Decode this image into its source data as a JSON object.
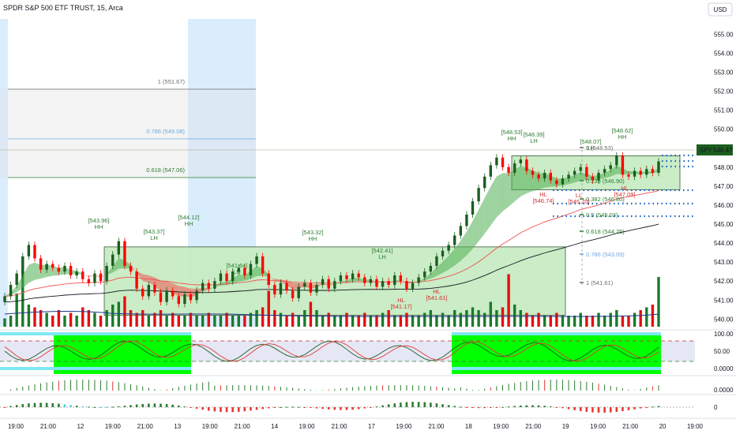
{
  "header": {
    "title": "SPDR S&P 500 ETF TRUST, 15, Arca",
    "currency": "USD"
  },
  "price_axis": {
    "ticks": [
      "555.00",
      "554.00",
      "553.00",
      "552.00",
      "551.00",
      "550.00",
      "549.00",
      "548.00",
      "547.00",
      "546.00",
      "545.00",
      "544.00",
      "543.00",
      "542.00",
      "541.00",
      "540.00"
    ],
    "last_label": "SPY",
    "last_price": "548.47"
  },
  "time_axis": {
    "labels": [
      "19:00",
      "21:00",
      "12",
      "19:00",
      "21:00",
      "13",
      "19:00",
      "21:00",
      "14",
      "19:00",
      "21:00",
      "17",
      "19:00",
      "21:00",
      "18",
      "19:00",
      "21:00",
      "19",
      "19:00",
      "21:00",
      "20",
      "19:00"
    ]
  },
  "fib_labels": {
    "left": [
      "1 (551.67)",
      "0.786 (549.08)",
      "0.618 (547.06)"
    ],
    "right": [
      "0.236 (546.90)",
      "0.382 (546.80)",
      "0.5 (545.03)",
      "0.618 (544.25)",
      "0.786 (543.09)",
      "1 (541.61)",
      "0 (548.53)"
    ]
  },
  "annotations": {
    "highs": [
      {
        "price": "[543.96]",
        "tag": "HH"
      },
      {
        "price": "[543.37]",
        "tag": "LH"
      },
      {
        "price": "[544.12]",
        "tag": "HH"
      },
      {
        "price": "[541.64]",
        "tag": "LH"
      },
      {
        "price": "[543.32]",
        "tag": "HH"
      },
      {
        "price": "[542.41]",
        "tag": "LH"
      },
      {
        "price": "[548.53]",
        "tag": "HH"
      },
      {
        "price": "[548.39]",
        "tag": "LH"
      },
      {
        "price": "[548.07]",
        "tag": "LH"
      },
      {
        "price": "[548.62]",
        "tag": "HH"
      }
    ],
    "lows": [
      {
        "price": "[541.17]",
        "tag": "HL"
      },
      {
        "price": "[541.61]",
        "tag": "HL"
      },
      {
        "price": "[546.74]",
        "tag": "HL"
      },
      {
        "price": "[545.70]",
        "tag": "LL"
      },
      {
        "price": "[547.09]",
        "tag": "HL"
      }
    ]
  },
  "sub_axes": {
    "osc1": [
      "100.00",
      "50.00",
      "0.0000"
    ],
    "osc2": [
      "0.0000"
    ],
    "osc3": [
      "0"
    ]
  },
  "colors": {
    "bull": "#1b5e20",
    "bear": "#ff0000",
    "volume_bull": "#1b7a2a",
    "volume_bear": "#e40f0f",
    "box_fill": "#c8ecc3",
    "box_stroke": "#1b3a1b",
    "cloud_green": "#4caf50",
    "cloud_red": "#ef5350",
    "blue_zone": "#bbdefb",
    "fib_blue": "#1565c0",
    "osc_green": "#00ff00",
    "osc_cyan": "#7ee8f5"
  },
  "chart_data": {
    "type": "candlestick",
    "title": "SPDR S&P 500 ETF TRUST, 15, Arca",
    "symbol": "SPY",
    "ylim": [
      539.6,
      555.8
    ],
    "close_series": [
      541.2,
      541.8,
      542.4,
      543.3,
      543.9,
      543.2,
      542.6,
      542.9,
      542.7,
      542.5,
      542.8,
      542.3,
      542.5,
      542.1,
      541.9,
      542.4,
      542.0,
      542.8,
      543.4,
      544.1,
      542.8,
      542.5,
      541.6,
      541.2,
      541.8,
      541.4,
      540.9,
      541.5,
      541.2,
      540.8,
      541.3,
      541.0,
      541.5,
      541.9,
      541.6,
      542.0,
      542.4,
      542.0,
      542.5,
      542.7,
      542.3,
      542.9,
      543.3,
      542.4,
      541.8,
      541.3,
      541.9,
      541.5,
      541.1,
      541.7,
      541.9,
      541.4,
      541.8,
      542.1,
      541.6,
      542.0,
      542.3,
      542.1,
      542.4,
      542.2,
      541.9,
      542.1,
      541.7,
      542.0,
      541.8,
      542.3,
      542.0,
      541.6,
      541.9,
      542.2,
      542.5,
      542.8,
      543.3,
      543.6,
      543.9,
      544.4,
      544.9,
      545.5,
      546.2,
      546.9,
      547.5,
      548.1,
      548.5,
      548.0,
      547.7,
      548.2,
      548.4,
      547.8,
      547.6,
      547.4,
      547.7,
      547.3,
      547.1,
      547.4,
      547.6,
      547.8,
      548.0,
      547.5,
      547.3,
      547.7,
      547.9,
      548.1,
      548.6,
      547.6,
      547.5,
      547.8,
      547.6,
      547.9,
      547.7,
      548.3
    ],
    "volume_relative": [
      0.15,
      0.2,
      0.6,
      1.0,
      0.4,
      0.35,
      0.3,
      0.25,
      0.2,
      0.3,
      0.2,
      0.25,
      0.2,
      0.35,
      0.3,
      0.25,
      0.2,
      0.3,
      0.4,
      0.45,
      0.55,
      0.3,
      0.25,
      0.3,
      0.2,
      0.25,
      0.3,
      0.2,
      0.25,
      0.2,
      0.2,
      0.25,
      0.2,
      0.2,
      0.25,
      0.2,
      0.2,
      0.25,
      0.2,
      0.2,
      0.2,
      0.25,
      0.3,
      0.35,
      0.65,
      0.3,
      0.25,
      0.2,
      0.25,
      0.2,
      0.3,
      0.45,
      0.3,
      0.2,
      0.25,
      0.2,
      0.2,
      0.25,
      0.2,
      0.2,
      0.25,
      0.2,
      0.2,
      0.25,
      0.3,
      0.2,
      0.2,
      0.25,
      0.2,
      0.2,
      0.25,
      0.3,
      0.2,
      0.25,
      0.2,
      0.3,
      0.25,
      0.3,
      0.35,
      0.3,
      0.25,
      0.45,
      0.3,
      0.35,
      0.95,
      0.4,
      0.3,
      0.25,
      0.2,
      0.25,
      0.2,
      0.2,
      0.25,
      0.2,
      0.2,
      0.2,
      0.25,
      0.2,
      0.2,
      0.25,
      0.2,
      0.25,
      0.3,
      0.2,
      0.2,
      0.25,
      0.3,
      0.35,
      0.4,
      0.9
    ],
    "zones": [
      {
        "name": "range box 1",
        "price_low": 540.2,
        "price_high": 543.8
      },
      {
        "name": "range box 2",
        "price_low": 546.8,
        "price_high": 548.6
      }
    ],
    "fib_levels_left": [
      551.67,
      549.08,
      547.06
    ],
    "fib_levels_right": [
      548.53,
      546.9,
      546.8,
      545.03,
      544.25,
      543.09,
      541.61
    ]
  }
}
